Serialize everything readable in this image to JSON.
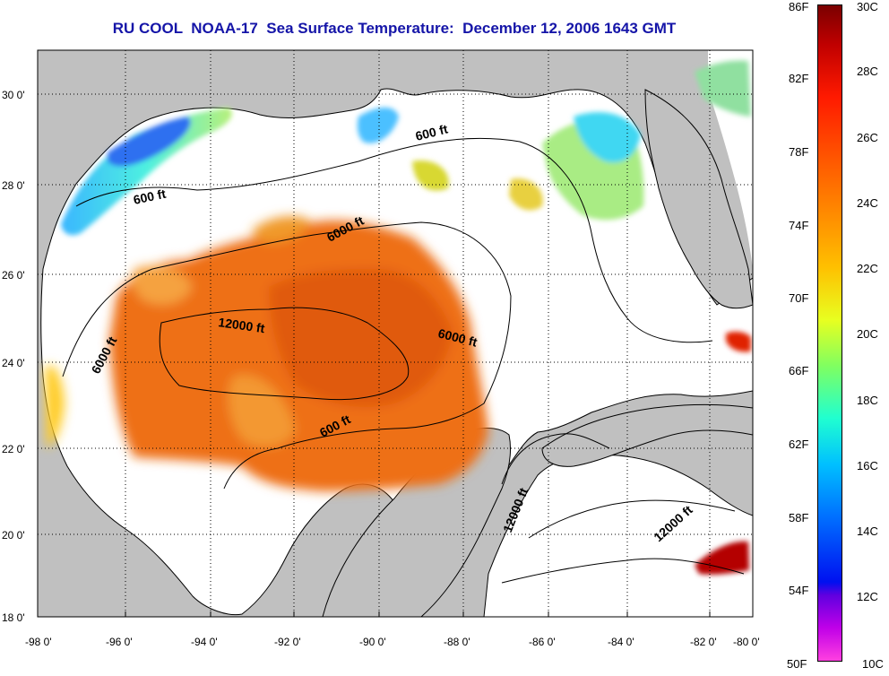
{
  "title": "RU COOL  NOAA-17  Sea Surface Temperature:  December 12, 2006 1643 GMT",
  "map": {
    "lon_labels": [
      "-98 0'",
      "-96 0'",
      "-94 0'",
      "-92 0'",
      "-90 0'",
      "-88 0'",
      "-86 0'",
      "-84 0'",
      "-82 0'",
      "-80 0'"
    ],
    "lat_labels": [
      "30 0'",
      "28 0'",
      "26 0'",
      "24 0'",
      "22 0'",
      "20 0'",
      "18 0'"
    ],
    "contour_labels": [
      "600 ft",
      "600 ft",
      "6000 ft",
      "12000 ft",
      "6000 ft",
      "6000 ft",
      "600 ft",
      "12000 ft",
      "12000 ft"
    ],
    "colors": {
      "land": "#c0c0c0",
      "water": "#ffffff",
      "title": "#1515a8"
    }
  },
  "colorbar": {
    "fahrenheit": [
      "86F",
      "82F",
      "78F",
      "74F",
      "70F",
      "66F",
      "62F",
      "58F",
      "54F",
      "50F"
    ],
    "celsius": [
      "30C",
      "28C",
      "26C",
      "24C",
      "22C",
      "20C",
      "18C",
      "16C",
      "14C",
      "12C",
      "10C"
    ]
  }
}
